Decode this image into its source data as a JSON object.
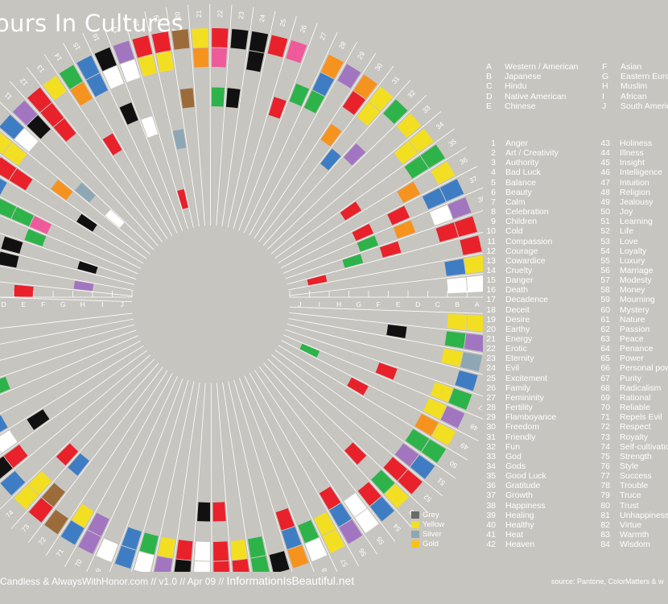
{
  "title": "ours In Cultures",
  "cultures": [
    {
      "letter": "A",
      "name": "Western / American"
    },
    {
      "letter": "B",
      "name": "Japanese"
    },
    {
      "letter": "C",
      "name": "Hindu"
    },
    {
      "letter": "D",
      "name": "Native American"
    },
    {
      "letter": "E",
      "name": "Chinese"
    },
    {
      "letter": "F",
      "name": "Asian"
    },
    {
      "letter": "G",
      "name": "Eastern Euro"
    },
    {
      "letter": "H",
      "name": "Muslim"
    },
    {
      "letter": "I",
      "name": "African"
    },
    {
      "letter": "J",
      "name": "South Americ"
    }
  ],
  "meanings": [
    "Anger",
    "Art / Creativity",
    "Authority",
    "Bad Luck",
    "Balance",
    "Beauty",
    "Calm",
    "Celebration",
    "Children",
    "Cold",
    "Compassion",
    "Courage",
    "Cowardice",
    "Cruelty",
    "Danger",
    "Death",
    "Decadence",
    "Deceit",
    "Desire",
    "Earthy",
    "Energy",
    "Erotic",
    "Eternity",
    "Evil",
    "Excitement",
    "Family",
    "Femininity",
    "Fertility",
    "Flamboyance",
    "Freedom",
    "Friendly",
    "Fun",
    "God",
    "Gods",
    "Good Luck",
    "Gratitude",
    "Growth",
    "Happiness",
    "Healing",
    "Healthy",
    "Heat",
    "Heaven",
    "Holiness",
    "Illness",
    "Insight",
    "Intelligence",
    "Intuition",
    "Religion",
    "Jealousy",
    "Joy",
    "Learning",
    "Life",
    "Love",
    "Loyalty",
    "Luxury",
    "Marriage",
    "Modesty",
    "Money",
    "Mourning",
    "Mystery",
    "Nature",
    "Passion",
    "Peace",
    "Penance",
    "Power",
    "Personal pow",
    "Purity",
    "Radicalism",
    "Rational",
    "Reliable",
    "Repels Evil",
    "Respect",
    "Royalty",
    "Self-cultivatio",
    "Strength",
    "Style",
    "Success",
    "Trouble",
    "Truce",
    "Trust",
    "Unhappiness",
    "Virtue",
    "Warmth",
    "Wisdom"
  ],
  "color_key": [
    {
      "label": "Grey",
      "color": "#6b6b6b"
    },
    {
      "label": "Yellow",
      "color": "#f3df22"
    },
    {
      "label": "Silver",
      "color": "#8ea7b4"
    },
    {
      "label": "Gold",
      "color": "#f7c21a"
    }
  ],
  "palette": {
    "R": "#e8212b",
    "O": "#f6921e",
    "Y": "#f3df22",
    "G": "#2db34a",
    "B": "#3e7dc4",
    "P": "#a275c0",
    "K": "#111111",
    "W": "#ffffff",
    "N": "#9c6b3a",
    "M": "#ef5a9a",
    "S": "#8ea7b4",
    "A": "#6b6b6b",
    "L": "#f7c21a"
  },
  "footer": {
    "left_small": "cCandless & AlwaysWithHonor.com  // v1.0  // Apr 09 //",
    "left_big": "InformationIsBeautiful.net",
    "right": "source: Pantone, ColorMatters & w"
  },
  "chart_data": {
    "type": "radial-grid",
    "title": "ours In Cultures",
    "ring_letters": [
      "A",
      "B",
      "C",
      "D",
      "E",
      "F",
      "G",
      "H",
      "I",
      "J"
    ],
    "spokes": [
      1,
      2,
      3,
      4,
      5,
      6,
      7,
      8,
      9,
      10,
      11,
      12,
      13,
      14,
      15,
      16,
      17,
      18,
      19,
      20,
      21,
      22,
      23,
      24,
      25,
      26,
      27,
      28,
      29,
      30,
      31,
      32,
      33,
      34,
      35,
      36,
      37,
      38,
      39,
      40,
      41,
      42,
      43,
      44,
      45,
      46,
      47,
      48,
      49,
      50,
      51,
      52,
      53,
      54,
      55,
      56,
      57,
      58,
      59,
      60,
      61,
      62,
      63,
      64,
      65,
      66,
      67,
      68,
      69,
      70,
      71,
      72,
      73,
      74,
      75,
      76,
      77,
      78,
      79,
      80,
      81,
      82,
      83,
      84
    ],
    "cells": {
      "1": "RR..R.....",
      "2": "YY.....P..",
      "3": "K..K......",
      "4": "...K...K..",
      "5": "BB..G.....",
      "6": "W.GGM.....",
      "7": "BB........",
      "8": "RRR...K...",
      "9": "YY..O.....",
      "10": "BW...S.W..",
      "11": "PK........",
      "12": "RRR.......",
      "13": "Y.........",
      "14": "GO..R.....",
      "15": "BB........",
      "16": "KW.K......",
      "17": "PW..W.....",
      "18": "RY......R.",
      "19": "RY...S....",
      "20": "N..N......",
      "21": "YO........",
      "22": "RM.G......",
      "23": "K..K......",
      "24": "KK........",
      "25": "R.........",
      "26": "M..R......",
      "27": "..G.......",
      "28": "OBG.......",
      "29": "P.........",
      "30": "OR.O......",
      "31": "YY..B.....",
      "32": "G..P......",
      "33": "Y.........",
      "34": "YY........",
      "35": "GG...R....",
      "36": "Y.O.......",
      "37": "BB.R.R....",
      "38": "PW.O.G....",
      "39": "RR..R.G...",
      "40": "R.......R.",
      "41": "YB........",
      "42": "WW........",
      "43": "YY........",
      "44": "PG..K.....",
      "45": "SY........",
      "46": "B.........",
      "47": "GY..R.....",
      "48": "PY......G.",
      "49": "YO...R....",
      "50": "GG........",
      "51": "BP........",
      "52": "RR........",
      "53": "YG.R......",
      "54": "BR........",
      "55": "WW........",
      "56": "PBR.......",
      "57": "YY........",
      "58": "WG........",
      "59": "OBR.......",
      "60": "K.........",
      "61": "GG........",
      "62": "RY........",
      "63": "RR.R......",
      "64": "WW.K......",
      "65": "KR........",
      "66": "PY........",
      "67": "WG........",
      "68": "BB........",
      "69": "W.........",
      "70": "PP........",
      "71": "BY........",
      "72": "N.........",
      "73": "RN.B......",
      "74": "YY.R......",
      "75": "B.........",
      "76": "KR........",
      "77": "WW.K......",
      "78": "PB........",
      "79": "R.........",
      "80": "Y.G.......",
      "81": "KK........",
      "82": "R.........",
      "83": "RR........",
      "84": "Y........."
    }
  }
}
